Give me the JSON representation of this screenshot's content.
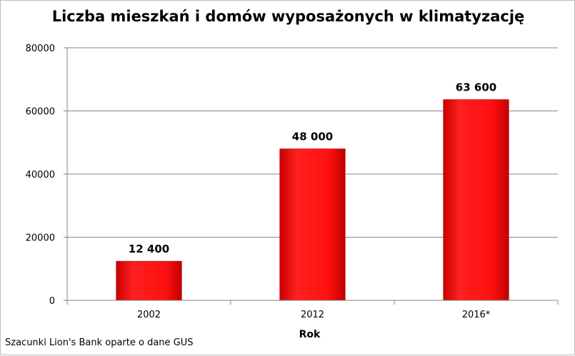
{
  "chart_data": {
    "type": "bar",
    "title": "Liczba mieszkań i domów wyposażonych w klimatyzację",
    "xlabel": "Rok",
    "ylabel": "",
    "categories": [
      "2002",
      "2012",
      "2016*"
    ],
    "values": [
      12400,
      48000,
      63600
    ],
    "data_labels": [
      "12 400",
      "48 000",
      "63 600"
    ],
    "ylim": [
      0,
      80000
    ],
    "yticks": [
      "0",
      "20000",
      "40000",
      "60000",
      "80000"
    ],
    "grid": true,
    "legend": "none",
    "bar_color": "#ff0000"
  },
  "footer": {
    "source": "Szacunki Lion's Bank oparte o dane GUS"
  }
}
